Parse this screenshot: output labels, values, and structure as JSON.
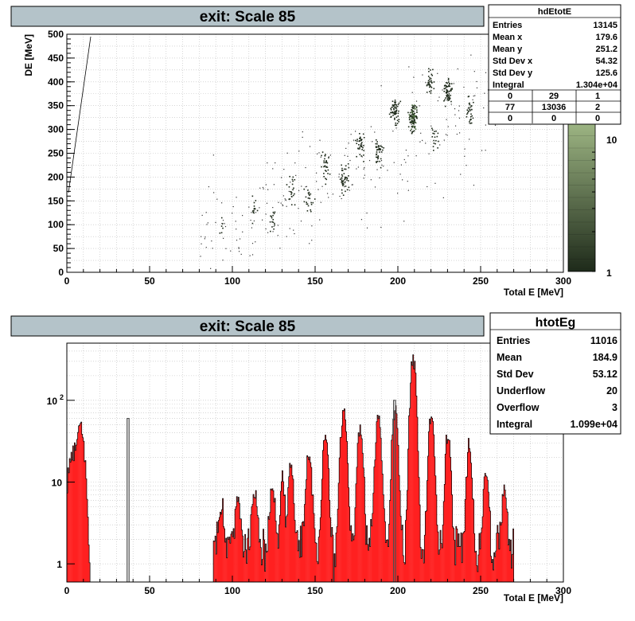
{
  "chart_data": [
    {
      "type": "scatter",
      "variant": "2d-histogram",
      "title": "exit: Scale 85",
      "xlabel": "Total E [MeV]",
      "ylabel": "DE [MeV]",
      "xlim": [
        0,
        300
      ],
      "ylim": [
        0,
        500
      ],
      "x_ticks": [
        "0",
        "50",
        "100",
        "150",
        "200",
        "250",
        "300"
      ],
      "y_ticks": [
        "0",
        "50",
        "100",
        "150",
        "200",
        "250",
        "300",
        "350",
        "400",
        "450",
        "500"
      ],
      "grid": true,
      "colorbar": {
        "scale": "log",
        "ticks": [
          "1",
          "10"
        ],
        "colors": [
          "#1e2a1a",
          "#9db583"
        ]
      },
      "clusters": [
        {
          "x": 93,
          "y": 92,
          "n": 6
        },
        {
          "x": 113,
          "y": 130,
          "n": 14
        },
        {
          "x": 124,
          "y": 112,
          "n": 16
        },
        {
          "x": 135,
          "y": 172,
          "n": 22
        },
        {
          "x": 146,
          "y": 157,
          "n": 22
        },
        {
          "x": 156,
          "y": 220,
          "n": 32
        },
        {
          "x": 167,
          "y": 203,
          "n": 44
        },
        {
          "x": 177,
          "y": 270,
          "n": 38
        },
        {
          "x": 188,
          "y": 255,
          "n": 40
        },
        {
          "x": 198,
          "y": 340,
          "n": 64
        },
        {
          "x": 209,
          "y": 322,
          "n": 110
        },
        {
          "x": 219,
          "y": 395,
          "n": 34
        },
        {
          "x": 222,
          "y": 285,
          "n": 18
        },
        {
          "x": 230,
          "y": 380,
          "n": 62
        },
        {
          "x": 243,
          "y": 340,
          "n": 30
        }
      ],
      "stats": {
        "name": "hdEtotE",
        "rows": [
          {
            "label": "Entries",
            "value": "13145"
          },
          {
            "label": "Mean x",
            "value": "179.6"
          },
          {
            "label": "Mean y",
            "value": "251.2"
          },
          {
            "label": "Std Dev x",
            "value": "54.32"
          },
          {
            "label": "Std Dev y",
            "value": "125.6"
          },
          {
            "label": "Integral",
            "value": "1.304e+04"
          }
        ],
        "grid": [
          [
            "0",
            "29",
            "1"
          ],
          [
            "77",
            "13036",
            "2"
          ],
          [
            "0",
            "0",
            "0"
          ]
        ]
      }
    },
    {
      "type": "bar",
      "variant": "1d-histogram",
      "title": "exit: Scale 85",
      "xlabel": "Total E [MeV]",
      "ylabel": "",
      "xlim": [
        0,
        300
      ],
      "yscale": "log",
      "ylim": [
        0.6,
        500
      ],
      "x_ticks": [
        "0",
        "50",
        "100",
        "150",
        "200",
        "250",
        "300"
      ],
      "y_ticks": [
        {
          "value": 1,
          "base": "1",
          "exp": ""
        },
        {
          "value": 10,
          "base": "10",
          "exp": ""
        },
        {
          "value": 100,
          "base": "10",
          "exp": "2"
        }
      ],
      "grid": true,
      "colors": {
        "fill": "#ff2020",
        "outline": "#000000",
        "overlay": "#505050"
      },
      "peaks": [
        {
          "x": 3,
          "height": 18,
          "width": 2.5
        },
        {
          "x": 8,
          "height": 40,
          "width": 2
        },
        {
          "x": 93,
          "height": 4,
          "width": 1.2
        },
        {
          "x": 103,
          "height": 5,
          "width": 1.2
        },
        {
          "x": 113,
          "height": 6,
          "width": 1.2
        },
        {
          "x": 124,
          "height": 8,
          "width": 1.2
        },
        {
          "x": 130,
          "height": 10,
          "width": 1.0
        },
        {
          "x": 135,
          "height": 14,
          "width": 1.2
        },
        {
          "x": 146,
          "height": 22,
          "width": 1.3
        },
        {
          "x": 156,
          "height": 35,
          "width": 1.3
        },
        {
          "x": 167,
          "height": 75,
          "width": 1.4
        },
        {
          "x": 177,
          "height": 45,
          "width": 1.3
        },
        {
          "x": 188,
          "height": 60,
          "width": 1.4
        },
        {
          "x": 198,
          "height": 80,
          "width": 1.3
        },
        {
          "x": 209,
          "height": 340,
          "width": 1.3
        },
        {
          "x": 220,
          "height": 65,
          "width": 1.3
        },
        {
          "x": 230,
          "height": 40,
          "width": 1.2
        },
        {
          "x": 243,
          "height": 28,
          "width": 1.2
        },
        {
          "x": 253,
          "height": 12,
          "width": 1.2
        },
        {
          "x": 264,
          "height": 6,
          "width": 1.2
        }
      ],
      "overlay_spikes": [
        {
          "x": 37,
          "height": 60
        },
        {
          "x": 198,
          "height": 100
        }
      ],
      "stats": {
        "name": "htotEg",
        "rows": [
          {
            "label": "Entries",
            "value": "11016"
          },
          {
            "label": "Mean",
            "value": "184.9"
          },
          {
            "label": "Std Dev",
            "value": "53.12"
          },
          {
            "label": "Underflow",
            "value": "20"
          },
          {
            "label": "Overflow",
            "value": "3"
          },
          {
            "label": "Integral",
            "value": "1.099e+04"
          }
        ]
      }
    }
  ]
}
